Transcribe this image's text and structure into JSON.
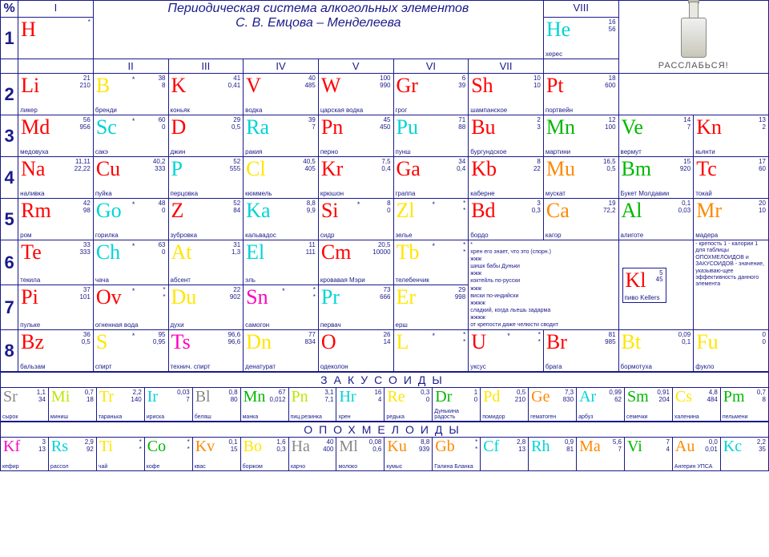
{
  "title_line1": "Периодическая система алкогольных элементов",
  "title_line2": "С. В. Емцова – Менделеева",
  "promo_text": "РАССЛАБЬСЯ!",
  "colors": {
    "red": "#ff0000",
    "blue_navy": "#1a1a8a",
    "cyan": "#00d4d4",
    "yellow": "#ffe600",
    "green": "#00b800",
    "orange": "#ff8800",
    "magenta": "#ff00c0",
    "lime": "#b8e800",
    "gray": "#888888"
  },
  "groups": [
    "I",
    "II",
    "III",
    "IV",
    "V",
    "VI",
    "VII",
    "VIII"
  ],
  "periods": [
    1,
    2,
    3,
    4,
    5,
    6,
    7,
    8
  ],
  "section1": "ЗАКУСОИДЫ",
  "section2": "ОПОХМЕЛОИДЫ",
  "main_rows": [
    {
      "period": 1,
      "cells": [
        {
          "sym": "H",
          "color": "red",
          "n1": "*",
          "n2": "",
          "name": ""
        },
        null,
        null,
        null,
        null,
        null,
        null,
        {
          "sym": "He",
          "color": "cyan",
          "n1": "16",
          "n2": "56",
          "name": "херес"
        }
      ]
    },
    {
      "period": 2,
      "cells": [
        {
          "sym": "Li",
          "color": "red",
          "n1": "21",
          "n2": "210",
          "name": "ликер"
        },
        {
          "sym": "B",
          "color": "yellow",
          "n1": "38",
          "n2": "8",
          "name": "бренди",
          "star": "*"
        },
        {
          "sym": "K",
          "color": "red",
          "n1": "41",
          "n2": "0,41",
          "name": "коньяк"
        },
        {
          "sym": "V",
          "color": "red",
          "n1": "40",
          "n2": "485",
          "name": "водка"
        },
        {
          "sym": "W",
          "color": "red",
          "n1": "100",
          "n2": "990",
          "name": "царская водка"
        },
        {
          "sym": "Gr",
          "color": "red",
          "n1": "6",
          "n2": "39",
          "name": "грог"
        },
        {
          "sym": "Sh",
          "color": "red",
          "n1": "10",
          "n2": "10",
          "name": "шампанское"
        },
        {
          "sym": "Pt",
          "color": "red",
          "n1": "18",
          "n2": "600",
          "name": "портвейн"
        }
      ]
    },
    {
      "period": 3,
      "cells": [
        {
          "sym": "Md",
          "color": "red",
          "n1": "56",
          "n2": "956",
          "name": "медовуха"
        },
        {
          "sym": "Sc",
          "color": "cyan",
          "n1": "60",
          "n2": "0",
          "name": "сакэ",
          "star": "*"
        },
        {
          "sym": "D",
          "color": "red",
          "n1": "29",
          "n2": "0,5",
          "name": "джин"
        },
        {
          "sym": "Ra",
          "color": "cyan",
          "n1": "39",
          "n2": "7",
          "name": "ракия"
        },
        {
          "sym": "Pn",
          "color": "red",
          "n1": "45",
          "n2": "450",
          "name": "перно"
        },
        {
          "sym": "Pu",
          "color": "cyan",
          "n1": "71",
          "n2": "88",
          "name": "пунш"
        },
        {
          "sym": "Bu",
          "color": "red",
          "n1": "2",
          "n2": "3",
          "name": "бургундское"
        },
        {
          "sym": "Mn",
          "color": "green",
          "n1": "12",
          "n2": "100",
          "name": "мартини"
        }
      ],
      "extra": [
        {
          "sym": "Ve",
          "color": "green",
          "n1": "14",
          "n2": "7",
          "name": "вермут"
        },
        {
          "sym": "Kn",
          "color": "red",
          "n1": "13",
          "n2": "2",
          "name": "кьянти"
        }
      ]
    },
    {
      "period": 4,
      "cells": [
        {
          "sym": "Na",
          "color": "red",
          "n1": "11,11",
          "n2": "22,22",
          "name": "наливка"
        },
        {
          "sym": "Cu",
          "color": "red",
          "n1": "40,2",
          "n2": "333",
          "name": "пуйка"
        },
        {
          "sym": "P",
          "color": "cyan",
          "n1": "52",
          "n2": "555",
          "name": "перцовка"
        },
        {
          "sym": "Cl",
          "color": "yellow",
          "n1": "40,5",
          "n2": "405",
          "name": "кюммель"
        },
        {
          "sym": "Kr",
          "color": "red",
          "n1": "7,5",
          "n2": "0,4",
          "name": "крюшон"
        },
        {
          "sym": "Ga",
          "color": "red",
          "n1": "34",
          "n2": "0,4",
          "name": "граппа"
        },
        {
          "sym": "Kb",
          "color": "red",
          "n1": "8",
          "n2": "22",
          "name": "каберне"
        },
        {
          "sym": "Mu",
          "color": "orange",
          "n1": "16,5",
          "n2": "0,5",
          "name": "мускат"
        }
      ],
      "extra": [
        {
          "sym": "Bm",
          "color": "green",
          "n1": "15",
          "n2": "920",
          "name": "Букет Молдавии"
        },
        {
          "sym": "Tc",
          "color": "red",
          "n1": "17",
          "n2": "60",
          "name": "токай"
        }
      ]
    },
    {
      "period": 5,
      "cells": [
        {
          "sym": "Rm",
          "color": "red",
          "n1": "42",
          "n2": "98",
          "name": "ром"
        },
        {
          "sym": "Go",
          "color": "cyan",
          "n1": "48",
          "n2": "0",
          "name": "горилка",
          "star": "*"
        },
        {
          "sym": "Z",
          "color": "red",
          "n1": "52",
          "n2": "84",
          "name": "зубровка"
        },
        {
          "sym": "Ka",
          "color": "cyan",
          "n1": "8,8",
          "n2": "9,9",
          "name": "кальвадос"
        },
        {
          "sym": "Si",
          "color": "red",
          "n1": "8",
          "n2": "0",
          "name": "сидр",
          "star": "*"
        },
        {
          "sym": "Zl",
          "color": "yellow",
          "n1": "*",
          "n2": "*",
          "name": "зелье",
          "star": "*"
        },
        {
          "sym": "Bd",
          "color": "red",
          "n1": "3",
          "n2": "0,3",
          "name": "бордо"
        },
        {
          "sym": "Ca",
          "color": "orange",
          "n1": "19",
          "n2": "72,2",
          "name": "кагор"
        }
      ],
      "extra": [
        {
          "sym": "Al",
          "color": "green",
          "n1": "0,1",
          "n2": "0,03",
          "name": "алиготе"
        },
        {
          "sym": "Mr",
          "color": "orange",
          "n1": "20",
          "n2": "10",
          "name": "мадера"
        }
      ]
    },
    {
      "period": 6,
      "cells": [
        {
          "sym": "Te",
          "color": "red",
          "n1": "33",
          "n2": "333",
          "name": "текила"
        },
        {
          "sym": "Ch",
          "color": "cyan",
          "n1": "63",
          "n2": "0",
          "name": "чача",
          "star": "*"
        },
        {
          "sym": "At",
          "color": "yellow",
          "n1": "31",
          "n2": "1,3",
          "name": "абсент"
        },
        {
          "sym": "El",
          "color": "cyan",
          "n1": "11",
          "n2": "111",
          "name": "эль"
        },
        {
          "sym": "Cm",
          "color": "red",
          "n1": "20,5",
          "n2": "10000",
          "name": "кровавая Мэри"
        },
        {
          "sym": "Tb",
          "color": "yellow",
          "n1": "*",
          "n2": "*",
          "name": "телебенчик",
          "star": "*"
        },
        null,
        null
      ]
    },
    {
      "period": 7,
      "cells": [
        {
          "sym": "Pi",
          "color": "red",
          "n1": "37",
          "n2": "101",
          "name": "пульке"
        },
        {
          "sym": "Ov",
          "color": "red",
          "n1": "*",
          "n2": "*",
          "name": "огненная вода",
          "star": "*"
        },
        {
          "sym": "Du",
          "color": "yellow",
          "n1": "22",
          "n2": "902",
          "name": "духи"
        },
        {
          "sym": "Sn",
          "color": "magenta",
          "n1": "*",
          "n2": "*",
          "name": "самогон",
          "star": "*"
        },
        {
          "sym": "Pr",
          "color": "cyan",
          "n1": "73",
          "n2": "666",
          "name": "первач"
        },
        {
          "sym": "Er",
          "color": "yellow",
          "n1": "29",
          "n2": "998",
          "name": "ерш"
        },
        null,
        null
      ]
    },
    {
      "period": 8,
      "cells": [
        {
          "sym": "Bz",
          "color": "red",
          "n1": "36",
          "n2": "0,5",
          "name": "бальзам"
        },
        {
          "sym": "S",
          "color": "yellow",
          "n1": "95",
          "n2": "0,95",
          "name": "спирт",
          "star": "*"
        },
        {
          "sym": "Ts",
          "color": "magenta",
          "n1": "96,6",
          "n2": "96,6",
          "name": "технич. спирт"
        },
        {
          "sym": "Dn",
          "color": "yellow",
          "n1": "77",
          "n2": "834",
          "name": "денатурат"
        },
        {
          "sym": "O",
          "color": "red",
          "n1": "26",
          "n2": "14",
          "name": "одеколон"
        },
        {
          "sym": "L",
          "color": "yellow",
          "n1": "*",
          "n2": "*",
          "name": "",
          "star": "*"
        },
        {
          "sym": "U",
          "color": "red",
          "n1": "*",
          "n2": "*",
          "name": "уксус",
          "star": "*"
        },
        {
          "sym": "Br",
          "color": "red",
          "n1": "81",
          "n2": "985",
          "name": "брага"
        }
      ],
      "extra": [
        {
          "sym": "Bt",
          "color": "yellow",
          "n1": "0,09",
          "n2": "0,1",
          "name": "бормотуха"
        },
        {
          "sym": "Fu",
          "color": "yellow",
          "n1": "0",
          "n2": "0",
          "name": "фукло"
        }
      ]
    }
  ],
  "row_zakus": [
    {
      "sym": "Sr",
      "color": "gray",
      "n1": "1,1",
      "n2": "34",
      "name": "сырок"
    },
    {
      "sym": "Mi",
      "color": "lime",
      "n1": "0,7",
      "n2": "18",
      "name": "миниш"
    },
    {
      "sym": "Tr",
      "color": "yellow",
      "n1": "2,2",
      "n2": "140",
      "name": "таранька"
    },
    {
      "sym": "Ir",
      "color": "cyan",
      "n1": "0,03",
      "n2": "7",
      "name": "ириска"
    },
    {
      "sym": "Bl",
      "color": "gray",
      "n1": "0,8",
      "n2": "80",
      "name": "беляш"
    },
    {
      "sym": "Mn",
      "color": "green",
      "n1": "67",
      "n2": "0,012",
      "name": "манка"
    },
    {
      "sym": "Pn",
      "color": "lime",
      "n1": "3,1",
      "n2": "7,1",
      "name": "пиц.резинка"
    },
    {
      "sym": "Hr",
      "color": "cyan",
      "n1": "16",
      "n2": "4",
      "name": "хрен"
    },
    {
      "sym": "Re",
      "color": "yellow",
      "n1": "0,3",
      "n2": "0",
      "name": "редька"
    },
    {
      "sym": "Dr",
      "color": "green",
      "n1": "1",
      "n2": "0",
      "name": "Дунькина радость"
    },
    {
      "sym": "Pd",
      "color": "yellow",
      "n1": "0,5",
      "n2": "210",
      "name": "помидор"
    },
    {
      "sym": "Ge",
      "color": "orange",
      "n1": "7,3",
      "n2": "830",
      "name": "гематоген"
    },
    {
      "sym": "Ar",
      "color": "cyan",
      "n1": "0,99",
      "n2": "62",
      "name": "арбуз"
    },
    {
      "sym": "Sm",
      "color": "green",
      "n1": "0,91",
      "n2": "204",
      "name": "семечки"
    },
    {
      "sym": "Cs",
      "color": "yellow",
      "n1": "4,8",
      "n2": "484",
      "name": "халенина"
    },
    {
      "sym": "Pm",
      "color": "green",
      "n1": "0,7",
      "n2": "8",
      "name": "пельмени"
    }
  ],
  "row_opohm": [
    {
      "sym": "Kf",
      "color": "magenta",
      "n1": "3",
      "n2": "13",
      "name": "кефир"
    },
    {
      "sym": "Rs",
      "color": "cyan",
      "n1": "2,9",
      "n2": "92",
      "name": "рассол"
    },
    {
      "sym": "Ti",
      "color": "yellow",
      "n1": "*",
      "n2": "*",
      "name": "чай"
    },
    {
      "sym": "Co",
      "color": "green",
      "n1": "*",
      "n2": "*",
      "name": "кофе"
    },
    {
      "sym": "Kv",
      "color": "orange",
      "n1": "0,1",
      "n2": "15",
      "name": "квас"
    },
    {
      "sym": "Bo",
      "color": "yellow",
      "n1": "1,6",
      "n2": "0,3",
      "name": "боржом"
    },
    {
      "sym": "Ha",
      "color": "gray",
      "n1": "40",
      "n2": "400",
      "name": "харчо"
    },
    {
      "sym": "Ml",
      "color": "gray",
      "n1": "0,08",
      "n2": "0,6",
      "name": "молоко"
    },
    {
      "sym": "Ku",
      "color": "orange",
      "n1": "8,8",
      "n2": "939",
      "name": "кумыс"
    },
    {
      "sym": "Gb",
      "color": "orange",
      "n1": "*",
      "n2": "*",
      "name": "Галина Бланка"
    },
    {
      "sym": "Cf",
      "color": "cyan",
      "n1": "2,8",
      "n2": "13",
      "name": ""
    },
    {
      "sym": "Rh",
      "color": "cyan",
      "n1": "0,9",
      "n2": "81",
      "name": ""
    },
    {
      "sym": "Ma",
      "color": "orange",
      "n1": "5,6",
      "n2": "7",
      "name": ""
    },
    {
      "sym": "Vi",
      "color": "green",
      "n1": "7",
      "n2": "4",
      "name": ""
    },
    {
      "sym": "Au",
      "color": "orange",
      "n1": "0,0",
      "n2": "0,01",
      "name": "Ангерин УПСА"
    },
    {
      "sym": "Kc",
      "color": "cyan",
      "n1": "2,2",
      "n2": "35",
      "name": ""
    }
  ],
  "notes_block": [
    "*",
    "хрен его знает, что это (спорн.)",
    "жжж",
    "шишк бабы Дуньки",
    "жжж",
    "коктейль по-русски",
    "жжж",
    "виски по-индийски",
    "жжжж",
    "сладкий, когда льешь задарма",
    "жжжж",
    "от крепости даже челюсти сводит"
  ],
  "kl_box": {
    "sym": "Kl",
    "color": "red",
    "n1": "5",
    "n2": "45",
    "name": "пиво Kellers"
  },
  "legend": "- крепость 1\n- калории\n\n1 для таблицы ОПОХМЕЛОИДОВ и ЗАКУСОИДОВ - значение, указываю-щее эффективность данного элемента"
}
